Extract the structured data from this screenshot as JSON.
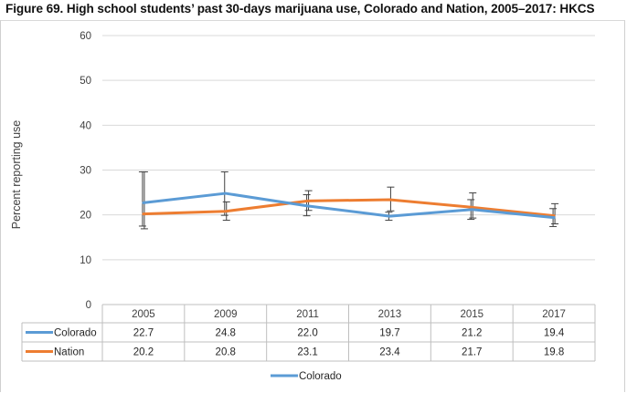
{
  "title": "Figure 69. High school students’ past 30-days marijuana use, Colorado and Nation, 2005–2017: HKCS",
  "chart_data": {
    "type": "line",
    "title": "Figure 69. High school students’ past 30-days marijuana use, Colorado and Nation, 2005–2017: HKCS",
    "xlabel": "",
    "ylabel": "Percent reporting use",
    "ylim": [
      0,
      60
    ],
    "yticks": [
      "0",
      "10",
      "20",
      "30",
      "40",
      "50",
      "60"
    ],
    "ytick_values": [
      0,
      10,
      20,
      30,
      40,
      50,
      60
    ],
    "grid": true,
    "categories": [
      "2005",
      "2009",
      "2011",
      "2013",
      "2015",
      "2017"
    ],
    "series": [
      {
        "name": "Colorado",
        "color": "#5b9bd5",
        "values": [
          22.7,
          24.8,
          22.0,
          19.7,
          21.2,
          19.4
        ],
        "labels": [
          "22.7",
          "24.8",
          "22.0",
          "19.7",
          "21.2",
          "19.4"
        ],
        "error_low": [
          17.5,
          19.9,
          19.8,
          18.8,
          19.0,
          17.4
        ],
        "error_high": [
          29.6,
          29.6,
          24.5,
          20.6,
          23.4,
          21.4
        ]
      },
      {
        "name": "Nation",
        "color": "#ed7d31",
        "values": [
          20.2,
          20.8,
          23.1,
          23.4,
          21.7,
          19.8
        ],
        "labels": [
          "20.2",
          "20.8",
          "23.1",
          "23.4",
          "21.7",
          "19.8"
        ],
        "error_low": [
          16.9,
          18.8,
          21.0,
          20.9,
          19.3,
          18.0
        ],
        "error_high": [
          29.6,
          22.9,
          25.4,
          26.2,
          24.9,
          22.5
        ]
      }
    ],
    "legend": {
      "placement": "bottom",
      "label": "Colorado",
      "color": "#5b9bd5"
    }
  }
}
